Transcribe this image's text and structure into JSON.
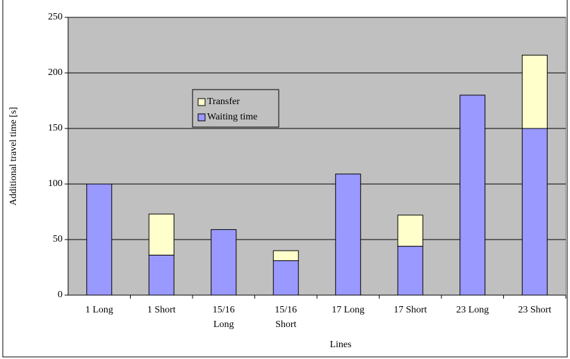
{
  "chart_data": {
    "type": "stacked_bar",
    "x_label": "Lines",
    "y_label": "Additional travel time [s]",
    "categories": [
      "1 Long",
      "1 Short",
      "15/16 Long",
      "15/16 Short",
      "17 Long",
      "17 Short",
      "23 Long",
      "23 Short"
    ],
    "series": [
      {
        "name": "Waiting time",
        "color": "#9999ff",
        "values": [
          100,
          36,
          59,
          31,
          109,
          44,
          180,
          150
        ]
      },
      {
        "name": "Transfer",
        "color": "#ffffcc",
        "values": [
          0,
          37,
          0,
          9,
          0,
          28,
          0,
          66
        ]
      }
    ],
    "ylim": [
      0,
      250
    ],
    "yticks": [
      0,
      50,
      100,
      150,
      200,
      250
    ],
    "grid": true,
    "plot_background": "#c0c0c0"
  }
}
